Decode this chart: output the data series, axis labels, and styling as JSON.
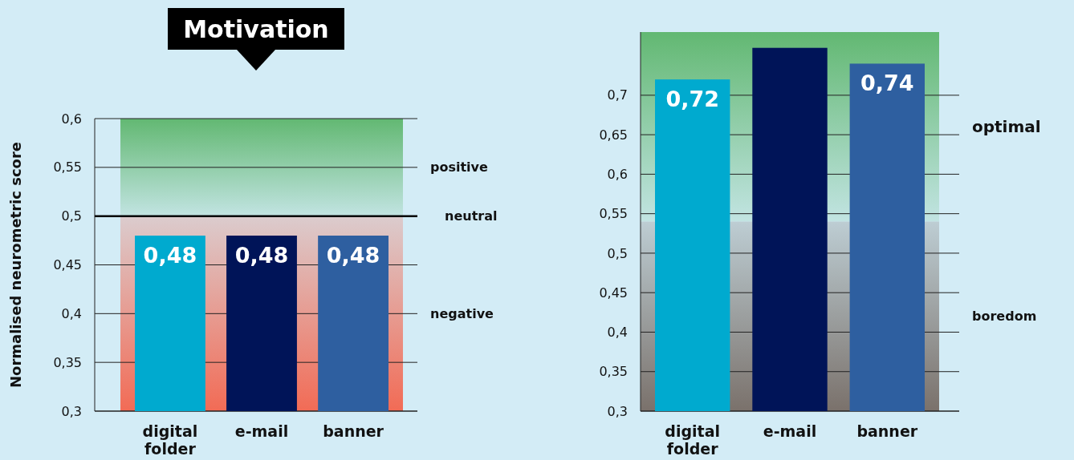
{
  "chart_data": [
    {
      "type": "bar",
      "title": "Motivation",
      "ylabel": "Normalised neurometric score",
      "categories": [
        "digital folder",
        "e-mail",
        "banner"
      ],
      "values": [
        0.48,
        0.48,
        0.48
      ],
      "colors": [
        "#00aacf",
        "#001458",
        "#2e5fa0"
      ],
      "value_labels": [
        "0,48",
        "0,48",
        "0,48"
      ],
      "ylim": [
        0.3,
        0.6
      ],
      "yticks": [
        {
          "value": 0.3,
          "label": "0,3"
        },
        {
          "value": 0.35,
          "label": "0,35"
        },
        {
          "value": 0.4,
          "label": "0,4"
        },
        {
          "value": 0.45,
          "label": "0,45"
        },
        {
          "value": 0.5,
          "label": "0,5"
        },
        {
          "value": 0.55,
          "label": "0,55"
        },
        {
          "value": 0.6,
          "label": "0,6"
        }
      ],
      "grid": "y",
      "bands": [
        {
          "axis": "y",
          "from": 0.5,
          "to": 0.6,
          "label": "positive",
          "color": "#62b872"
        },
        {
          "axis": "y",
          "from": 0.3,
          "to": 0.5,
          "label": "negative",
          "color": "#f26b55"
        }
      ],
      "ref_lines": [
        {
          "axis": "y",
          "value": 0.5,
          "label": "neutral",
          "color": "#000000"
        }
      ]
    },
    {
      "type": "bar",
      "categories": [
        "digital folder",
        "e-mail",
        "banner"
      ],
      "values": [
        0.72,
        0.76,
        0.74
      ],
      "colors": [
        "#00aacf",
        "#001458",
        "#2e5fa0"
      ],
      "value_labels": [
        "0,72",
        null,
        "0,74"
      ],
      "ylim": [
        0.3,
        0.78
      ],
      "yticks": [
        {
          "value": 0.3,
          "label": "0,3"
        },
        {
          "value": 0.35,
          "label": "0,35"
        },
        {
          "value": 0.4,
          "label": "0,4"
        },
        {
          "value": 0.45,
          "label": "0,45"
        },
        {
          "value": 0.5,
          "label": "0,5"
        },
        {
          "value": 0.55,
          "label": "0,55"
        },
        {
          "value": 0.6,
          "label": "0,6"
        },
        {
          "value": 0.65,
          "label": "0,65"
        },
        {
          "value": 0.7,
          "label": "0,7"
        }
      ],
      "grid": "y",
      "bands": [
        {
          "axis": "y",
          "from": 0.54,
          "to": 0.78,
          "label": "optimal",
          "color": "#62b872"
        },
        {
          "axis": "y",
          "from": 0.3,
          "to": 0.54,
          "label": "boredom",
          "color": "#7a716b"
        }
      ]
    }
  ]
}
